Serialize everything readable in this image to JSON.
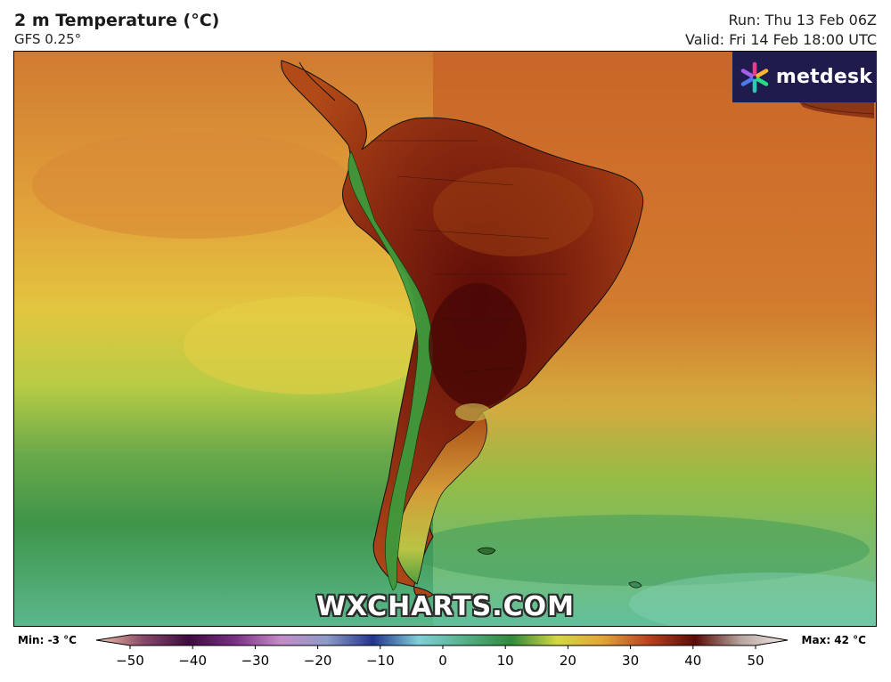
{
  "header": {
    "title": "2 m Temperature (°C)",
    "model": "GFS 0.25°",
    "run": "Run: Thu 13 Feb 06Z",
    "valid": "Valid: Fri 14 Feb 18:00 UTC"
  },
  "brand": {
    "logo_text": "metdesk",
    "logo_icon": "asterisk-burst-icon",
    "logo_bg": "#1f1c4d",
    "watermark": "WXCHARTS.COM"
  },
  "stats": {
    "min": "Min: -3 °C",
    "max": "Max: 42 °C"
  },
  "legend": {
    "ticks": [
      "−50",
      "−40",
      "−30",
      "−20",
      "−10",
      "0",
      "10",
      "20",
      "30",
      "40",
      "50"
    ],
    "range": [
      -50,
      50
    ],
    "colors": [
      "#f6c7a8",
      "#8a4a6a",
      "#3d0b3f",
      "#7a2f85",
      "#c58bc8",
      "#8d9cc8",
      "#23348f",
      "#7fd0d8",
      "#55b08a",
      "#2f8a3b",
      "#d4d743",
      "#e2a33b",
      "#b7411c",
      "#5c0b07",
      "#b8a6a0",
      "#f2ece8"
    ]
  }
}
